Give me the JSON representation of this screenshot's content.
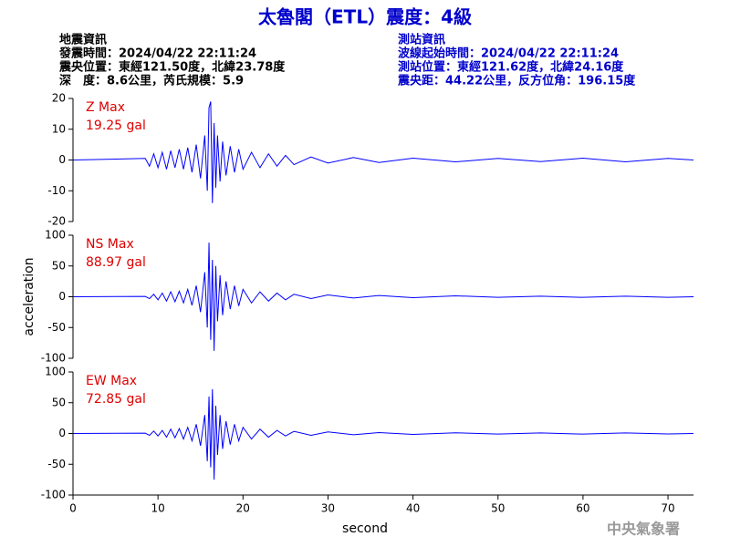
{
  "header": {
    "title": "太魯閣（ETL）震度：4級",
    "left": [
      "地震資訊",
      "發震時間：2024/04/22 22:11:24",
      "震央位置：東經121.50度，北緯23.78度",
      "深　度：8.6公里，芮氏規模：5.9"
    ],
    "right": [
      "測站資訊",
      "波線起始時間：2024/04/22 22:11:24",
      "測站位置：東經121.62度，北緯24.16度",
      "震央距：44.22公里，反方位角：196.15度"
    ],
    "watermark": "中央氣象署"
  },
  "chart_data": [
    {
      "type": "line",
      "annotations": [
        "Z Max",
        "19.25 gal"
      ],
      "x": [
        0,
        8.5,
        9,
        9.5,
        10,
        10.5,
        11,
        11.5,
        12,
        12.5,
        13,
        13.5,
        14,
        14.5,
        15,
        15.5,
        15.8,
        16,
        16.2,
        16.4,
        16.6,
        16.8,
        17,
        17.3,
        17.6,
        18,
        18.5,
        19,
        19.5,
        20,
        21,
        22,
        23,
        24,
        25,
        26,
        28,
        30,
        33,
        36,
        40,
        45,
        50,
        55,
        60,
        65,
        70,
        73
      ],
      "values": [
        0,
        0.5,
        -2,
        2,
        -2.5,
        2.5,
        -3,
        3,
        -2.5,
        3.5,
        -3,
        4,
        -4,
        5,
        -6,
        8,
        -10,
        17,
        19,
        -14,
        12,
        -9,
        8,
        -7,
        6,
        -5,
        4.5,
        -4,
        3.5,
        -3,
        2.5,
        -2.5,
        2,
        -2,
        1.5,
        -1.5,
        1,
        -1,
        0.8,
        -0.8,
        0.6,
        -0.6,
        0.5,
        -0.5,
        0.6,
        -0.6,
        0.5,
        0
      ],
      "color": "#0000ff",
      "xlim": [
        0,
        73
      ],
      "ylim": [
        -20,
        20
      ],
      "yticks": [
        -20,
        -10,
        0,
        10,
        20
      ]
    },
    {
      "type": "line",
      "annotations": [
        "NS Max",
        "88.97 gal"
      ],
      "ylabel": "acceleration",
      "x": [
        0,
        8.5,
        9,
        9.5,
        10,
        10.5,
        11,
        11.5,
        12,
        12.5,
        13,
        13.5,
        14,
        14.5,
        15,
        15.5,
        15.8,
        16,
        16.2,
        16.4,
        16.6,
        16.8,
        17,
        17.3,
        17.6,
        18,
        18.5,
        19,
        19.5,
        20,
        21,
        22,
        23,
        24,
        25,
        26,
        28,
        30,
        33,
        36,
        40,
        45,
        50,
        55,
        60,
        65,
        70,
        73
      ],
      "values": [
        0,
        0.5,
        -3,
        4,
        -5,
        6,
        -7,
        8,
        -8,
        9,
        -10,
        12,
        -14,
        18,
        -25,
        40,
        -50,
        88,
        -70,
        60,
        -88,
        50,
        -40,
        35,
        -30,
        25,
        -20,
        18,
        -15,
        12,
        -10,
        8,
        -7,
        6,
        -5,
        4,
        -3,
        3,
        -2,
        2,
        -1.5,
        1.5,
        -1,
        1,
        -1,
        1,
        -1,
        0
      ],
      "color": "#0000ff",
      "xlim": [
        0,
        73
      ],
      "ylim": [
        -100,
        100
      ],
      "yticks": [
        -100,
        -50,
        0,
        50,
        100
      ]
    },
    {
      "type": "line",
      "annotations": [
        "EW Max",
        "72.85 gal"
      ],
      "xlabel": "second",
      "x": [
        0,
        8.5,
        9,
        9.5,
        10,
        10.5,
        11,
        11.5,
        12,
        12.5,
        13,
        13.5,
        14,
        14.5,
        15,
        15.5,
        15.8,
        16,
        16.2,
        16.4,
        16.6,
        16.8,
        17,
        17.3,
        17.6,
        18,
        18.5,
        19,
        19.5,
        20,
        21,
        22,
        23,
        24,
        25,
        26,
        28,
        30,
        33,
        36,
        40,
        45,
        50,
        55,
        60,
        65,
        70,
        73
      ],
      "values": [
        0,
        0.5,
        -3,
        4,
        -4,
        5,
        -6,
        7,
        -7,
        8,
        -9,
        10,
        -12,
        15,
        -20,
        30,
        -45,
        60,
        -55,
        72,
        -75,
        45,
        -35,
        30,
        -25,
        20,
        -18,
        15,
        -12,
        10,
        -9,
        7,
        -6,
        5,
        -4,
        3.5,
        -3,
        2.5,
        -2,
        1.5,
        -1.5,
        1.2,
        -1,
        1,
        -1,
        1,
        -0.8,
        0
      ],
      "color": "#0000ff",
      "xlim": [
        0,
        73
      ],
      "ylim": [
        -100,
        100
      ],
      "yticks": [
        -100,
        -50,
        0,
        50,
        100
      ],
      "xticks": [
        0,
        10,
        20,
        30,
        40,
        50,
        60,
        70
      ]
    }
  ]
}
